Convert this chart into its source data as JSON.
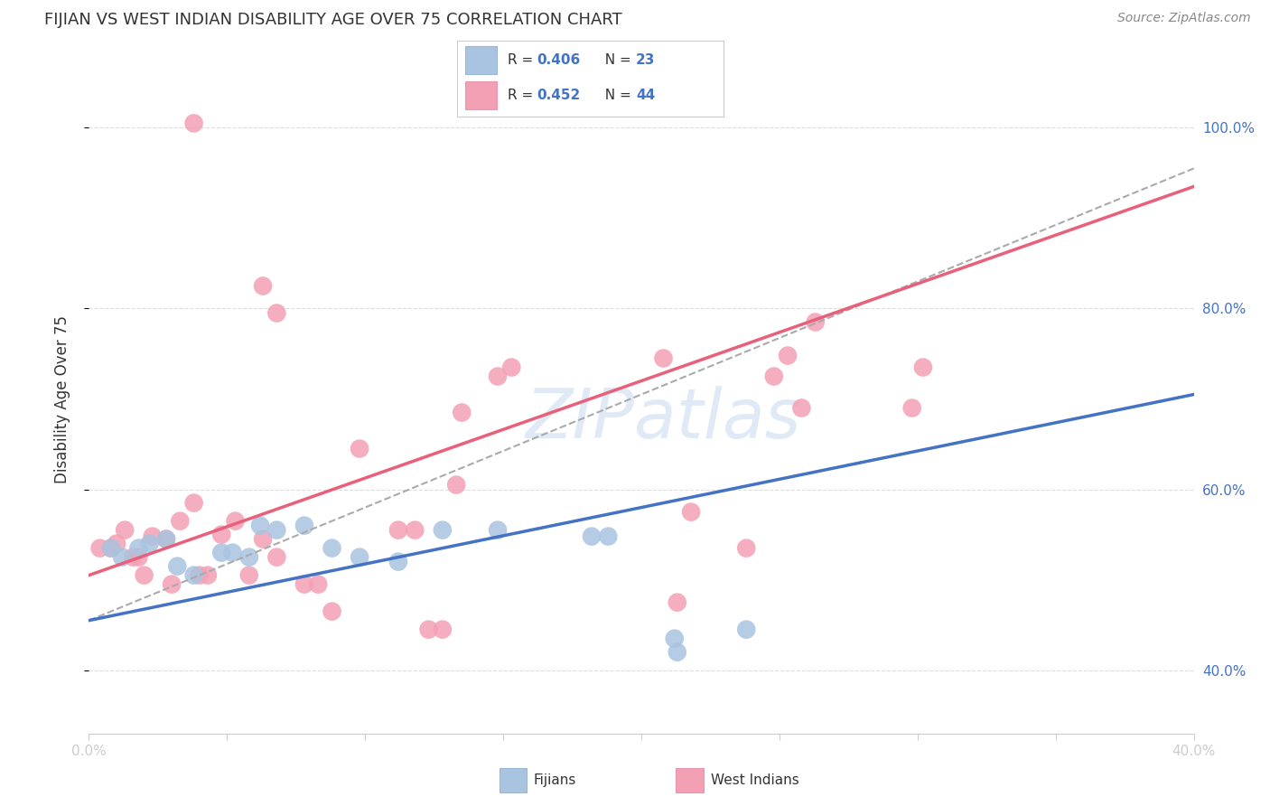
{
  "title": "FIJIAN VS WEST INDIAN DISABILITY AGE OVER 75 CORRELATION CHART",
  "source": "Source: ZipAtlas.com",
  "ylabel": "Disability Age Over 75",
  "xlim": [
    0.0,
    0.4
  ],
  "ylim": [
    0.33,
    1.07
  ],
  "xtick_labels": [
    "0.0%",
    "",
    "",
    "",
    "",
    "",
    "",
    "",
    "40.0%"
  ],
  "xtick_values": [
    0.0,
    0.05,
    0.1,
    0.15,
    0.2,
    0.25,
    0.3,
    0.35,
    0.4
  ],
  "ytick_values": [
    0.4,
    0.6,
    0.8,
    1.0
  ],
  "ytick_labels": [
    "40.0%",
    "60.0%",
    "80.0%",
    "100.0%"
  ],
  "fijian_color": "#a8c4e0",
  "westindian_color": "#f4a0b4",
  "fijian_line_color": "#4472c4",
  "westindian_line_color": "#e8607a",
  "dashed_line_color": "#aaaaaa",
  "fijian_scatter": [
    [
      0.008,
      0.535
    ],
    [
      0.012,
      0.525
    ],
    [
      0.018,
      0.535
    ],
    [
      0.022,
      0.54
    ],
    [
      0.028,
      0.545
    ],
    [
      0.032,
      0.515
    ],
    [
      0.038,
      0.505
    ],
    [
      0.048,
      0.53
    ],
    [
      0.052,
      0.53
    ],
    [
      0.058,
      0.525
    ],
    [
      0.062,
      0.56
    ],
    [
      0.068,
      0.555
    ],
    [
      0.078,
      0.56
    ],
    [
      0.088,
      0.535
    ],
    [
      0.098,
      0.525
    ],
    [
      0.112,
      0.52
    ],
    [
      0.128,
      0.555
    ],
    [
      0.148,
      0.555
    ],
    [
      0.182,
      0.548
    ],
    [
      0.188,
      0.548
    ],
    [
      0.212,
      0.435
    ],
    [
      0.213,
      0.42
    ],
    [
      0.238,
      0.445
    ]
  ],
  "westindian_scatter": [
    [
      0.004,
      0.535
    ],
    [
      0.008,
      0.535
    ],
    [
      0.01,
      0.54
    ],
    [
      0.013,
      0.555
    ],
    [
      0.016,
      0.525
    ],
    [
      0.018,
      0.525
    ],
    [
      0.02,
      0.505
    ],
    [
      0.023,
      0.548
    ],
    [
      0.028,
      0.545
    ],
    [
      0.03,
      0.495
    ],
    [
      0.033,
      0.565
    ],
    [
      0.038,
      0.585
    ],
    [
      0.04,
      0.505
    ],
    [
      0.043,
      0.505
    ],
    [
      0.048,
      0.55
    ],
    [
      0.053,
      0.565
    ],
    [
      0.058,
      0.505
    ],
    [
      0.063,
      0.545
    ],
    [
      0.068,
      0.525
    ],
    [
      0.078,
      0.495
    ],
    [
      0.083,
      0.495
    ],
    [
      0.088,
      0.465
    ],
    [
      0.098,
      0.645
    ],
    [
      0.112,
      0.555
    ],
    [
      0.118,
      0.555
    ],
    [
      0.123,
      0.445
    ],
    [
      0.128,
      0.445
    ],
    [
      0.133,
      0.605
    ],
    [
      0.135,
      0.685
    ],
    [
      0.148,
      0.725
    ],
    [
      0.153,
      0.735
    ],
    [
      0.208,
      0.745
    ],
    [
      0.213,
      0.475
    ],
    [
      0.238,
      0.535
    ],
    [
      0.248,
      0.725
    ],
    [
      0.253,
      0.748
    ],
    [
      0.263,
      0.785
    ],
    [
      0.258,
      0.69
    ],
    [
      0.038,
      1.005
    ],
    [
      0.063,
      0.825
    ],
    [
      0.068,
      0.795
    ],
    [
      0.218,
      0.575
    ],
    [
      0.298,
      0.69
    ],
    [
      0.302,
      0.735
    ]
  ],
  "fijian_line_x": [
    0.0,
    0.4
  ],
  "fijian_line_y": [
    0.455,
    0.705
  ],
  "westindian_line_x": [
    0.0,
    0.4
  ],
  "westindian_line_y": [
    0.505,
    0.935
  ],
  "dashed_line_x": [
    0.0,
    0.4
  ],
  "dashed_line_y": [
    0.455,
    0.955
  ],
  "watermark_text": "ZIPatlas",
  "background_color": "#ffffff",
  "grid_color": "#dddddd",
  "title_color": "#333333",
  "legend_r_fijian": "R = 0.406",
  "legend_n_fijian": "N = 23",
  "legend_r_westindian": "R = 0.452",
  "legend_n_westindian": "N = 44",
  "bottom_label_fijians": "Fijians",
  "bottom_label_westindians": "West Indians"
}
